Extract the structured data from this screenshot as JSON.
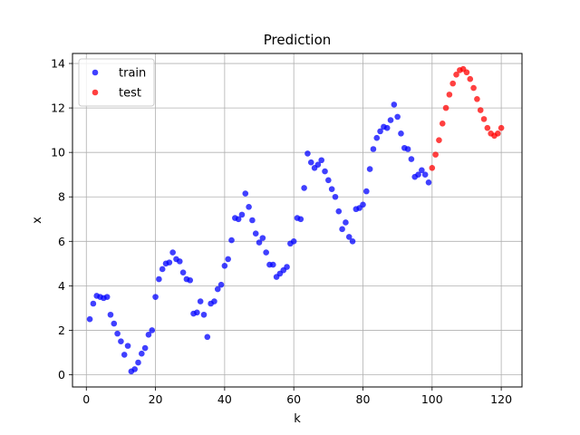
{
  "chart_data": {
    "type": "scatter",
    "title": "Prediction",
    "xlabel": "k",
    "ylabel": "x",
    "xlim": [
      -4,
      126
    ],
    "ylim": [
      -0.55,
      14.45
    ],
    "xticks": [
      0,
      20,
      40,
      60,
      80,
      100,
      120
    ],
    "yticks": [
      0,
      2,
      4,
      6,
      8,
      10,
      12,
      14
    ],
    "grid": true,
    "legend_position": "top-left",
    "series": [
      {
        "name": "train",
        "color": "#0000ff",
        "x": [
          1,
          2,
          3,
          4,
          5,
          6,
          7,
          8,
          9,
          10,
          11,
          12,
          13,
          14,
          15,
          16,
          17,
          18,
          19,
          20,
          21,
          22,
          23,
          24,
          25,
          26,
          27,
          28,
          29,
          30,
          31,
          32,
          33,
          34,
          35,
          36,
          37,
          38,
          39,
          40,
          41,
          42,
          43,
          44,
          45,
          46,
          47,
          48,
          49,
          50,
          51,
          52,
          53,
          54,
          55,
          56,
          57,
          58,
          59,
          60,
          61,
          62,
          63,
          64,
          65,
          66,
          67,
          68,
          69,
          70,
          71,
          72,
          73,
          74,
          75,
          76,
          77,
          78,
          79,
          80,
          81,
          82,
          83,
          84,
          85,
          86,
          87,
          88,
          89,
          90,
          91,
          92,
          93,
          94,
          95,
          96,
          97,
          98,
          99
        ],
        "y": [
          2.5,
          3.2,
          3.55,
          3.5,
          3.45,
          3.5,
          2.7,
          2.3,
          1.85,
          1.5,
          0.9,
          1.3,
          0.15,
          0.25,
          0.55,
          0.95,
          1.2,
          1.8,
          2.0,
          3.5,
          4.3,
          4.75,
          5.0,
          5.05,
          5.5,
          5.2,
          5.1,
          4.6,
          4.3,
          4.25,
          2.75,
          2.8,
          3.3,
          2.7,
          1.7,
          3.2,
          3.3,
          3.85,
          4.05,
          4.9,
          5.2,
          6.05,
          7.05,
          7.0,
          7.2,
          8.15,
          7.55,
          6.95,
          6.35,
          5.95,
          6.15,
          5.5,
          4.95,
          4.95,
          4.4,
          4.55,
          4.7,
          4.85,
          5.9,
          6.0,
          7.05,
          7.0,
          8.4,
          9.95,
          9.55,
          9.3,
          9.45,
          9.65,
          9.15,
          8.75,
          8.35,
          8.0,
          7.35,
          6.55,
          6.85,
          6.2,
          6.0,
          7.45,
          7.5,
          7.65,
          8.25,
          9.25,
          10.15,
          10.65,
          10.95,
          11.15,
          11.1,
          11.45,
          12.15,
          11.6,
          10.85,
          10.2,
          10.15,
          9.7,
          8.9,
          9.0,
          9.2,
          9.0,
          8.65
        ]
      },
      {
        "name": "test",
        "color": "#ff0000",
        "x": [
          100,
          101,
          102,
          103,
          104,
          105,
          106,
          107,
          108,
          109,
          110,
          111,
          112,
          113,
          114,
          115,
          116,
          117,
          118,
          119,
          120
        ],
        "y": [
          9.3,
          9.9,
          10.55,
          11.3,
          12.0,
          12.6,
          13.1,
          13.5,
          13.7,
          13.75,
          13.6,
          13.3,
          12.9,
          12.4,
          11.9,
          11.5,
          11.1,
          10.85,
          10.75,
          10.85,
          11.1
        ]
      }
    ]
  }
}
